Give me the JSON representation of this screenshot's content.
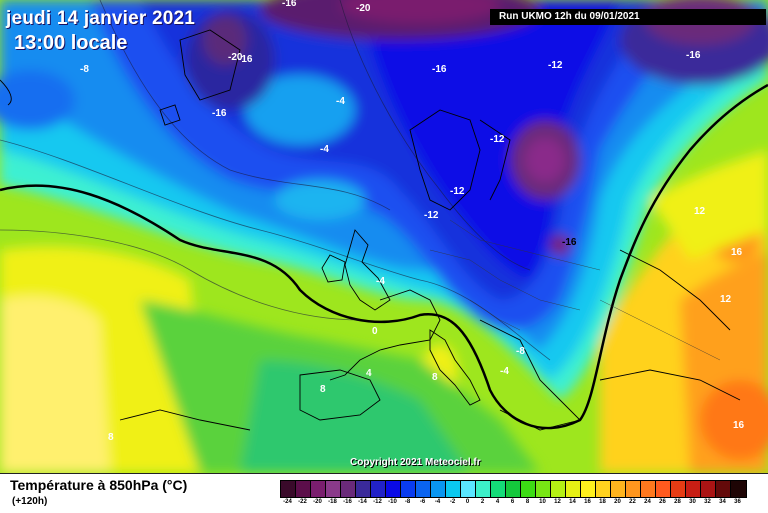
{
  "header": {
    "date": "jeudi 14 janvier 2021",
    "local_time": "13:00 locale",
    "run": "Run UKMO 12h du 09/01/2021"
  },
  "copyright": "Copyright 2021 Meteociel.fr",
  "footer": {
    "parameter": "Température à 850hPa (°C)",
    "lead_time": "(+120h)"
  },
  "legend": {
    "ticks": [
      "-24",
      "-22",
      "-20",
      "-18",
      "-16",
      "-14",
      "-12",
      "-10",
      "-8",
      "-6",
      "-4",
      "-2",
      "0",
      "2",
      "4",
      "6",
      "8",
      "10",
      "12",
      "14",
      "16",
      "18",
      "20",
      "22",
      "24",
      "26",
      "28",
      "30",
      "32",
      "34",
      "36"
    ],
    "colors": [
      "#3a0a2a",
      "#5c0e4a",
      "#7a1e6e",
      "#8a3a8a",
      "#6a2a7a",
      "#3a2a9a",
      "#2222c8",
      "#0a0ae6",
      "#0a3cf0",
      "#0a64f0",
      "#0a96f0",
      "#0ac8f0",
      "#5ae6ff",
      "#3cf0c8",
      "#14dc78",
      "#14c83c",
      "#3cdc14",
      "#78e614",
      "#b4f014",
      "#e6f014",
      "#fff01e",
      "#ffd21e",
      "#ffb41e",
      "#ff961e",
      "#ff781e",
      "#ff5a1e",
      "#e63c14",
      "#c81e14",
      "#aa1414",
      "#640a0a",
      "#1e0505"
    ]
  },
  "map": {
    "contour_labels": [
      {
        "text": "-16",
        "color": "#ffffff"
      },
      {
        "text": "-20",
        "color": "#ffffff"
      },
      {
        "text": "-8",
        "color": "#ffffff"
      },
      {
        "text": "-20",
        "color": "#ffffff"
      },
      {
        "text": "-16",
        "color": "#ffffff"
      },
      {
        "text": "-16",
        "color": "#ffffff"
      },
      {
        "text": "-16",
        "color": "#ffffff"
      },
      {
        "text": "-12",
        "color": "#ffffff"
      },
      {
        "text": "-16",
        "color": "#ffffff"
      },
      {
        "text": "-4",
        "color": "#ffffff"
      },
      {
        "text": "-4",
        "color": "#ffffff"
      },
      {
        "text": "-12",
        "color": "#ffffff"
      },
      {
        "text": "-12",
        "color": "#ffffff"
      },
      {
        "text": "-12",
        "color": "#ffffff"
      },
      {
        "text": "-16",
        "color": "#000000"
      },
      {
        "text": "-4",
        "color": "#ffffff"
      },
      {
        "text": "0",
        "color": "#ffffff"
      },
      {
        "text": "-8",
        "color": "#ffffff"
      },
      {
        "text": "-4",
        "color": "#ffffff"
      },
      {
        "text": "4",
        "color": "#ffffff"
      },
      {
        "text": "8",
        "color": "#ffffff"
      },
      {
        "text": "8",
        "color": "#ffffff"
      },
      {
        "text": "8",
        "color": "#ffffff"
      },
      {
        "text": "12",
        "color": "#ffffff"
      },
      {
        "text": "16",
        "color": "#ffffff"
      },
      {
        "text": "12",
        "color": "#ffffff"
      },
      {
        "text": "16",
        "color": "#ffffff"
      }
    ]
  }
}
